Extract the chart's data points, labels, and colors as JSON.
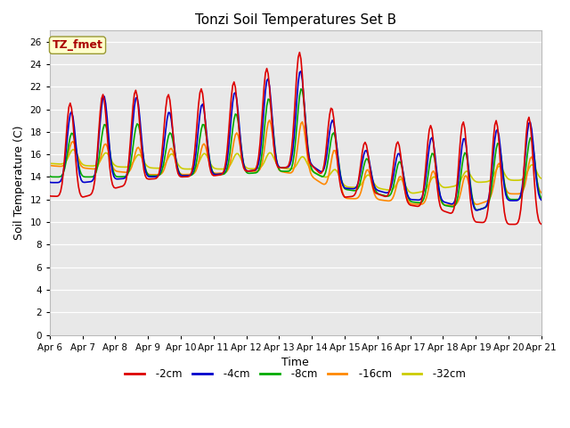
{
  "title": "Tonzi Soil Temperatures Set B",
  "xlabel": "Time",
  "ylabel": "Soil Temperature (C)",
  "annotation": "TZ_fmet",
  "annotation_color": "#aa0000",
  "annotation_bg": "#ffffcc",
  "annotation_border": "#999933",
  "ylim": [
    0,
    27
  ],
  "yticks": [
    0,
    2,
    4,
    6,
    8,
    10,
    12,
    14,
    16,
    18,
    20,
    22,
    24,
    26
  ],
  "series": {
    "-2cm": {
      "color": "#dd0000",
      "lw": 1.2
    },
    "-4cm": {
      "color": "#0000cc",
      "lw": 1.2
    },
    "-8cm": {
      "color": "#00aa00",
      "lw": 1.2
    },
    "-16cm": {
      "color": "#ff8800",
      "lw": 1.2
    },
    "-32cm": {
      "color": "#cccc00",
      "lw": 1.2
    }
  },
  "x_labels": [
    "Apr 6",
    "Apr 7",
    "Apr 8",
    "Apr 9",
    "Apr 10",
    "Apr 11",
    "Apr 12",
    "Apr 13",
    "Apr 14",
    "Apr 15",
    "Apr 16",
    "Apr 17",
    "Apr 18",
    "Apr 19",
    "Apr 20",
    "Apr 21"
  ],
  "fig_width": 6.4,
  "fig_height": 4.8,
  "dpi": 100
}
